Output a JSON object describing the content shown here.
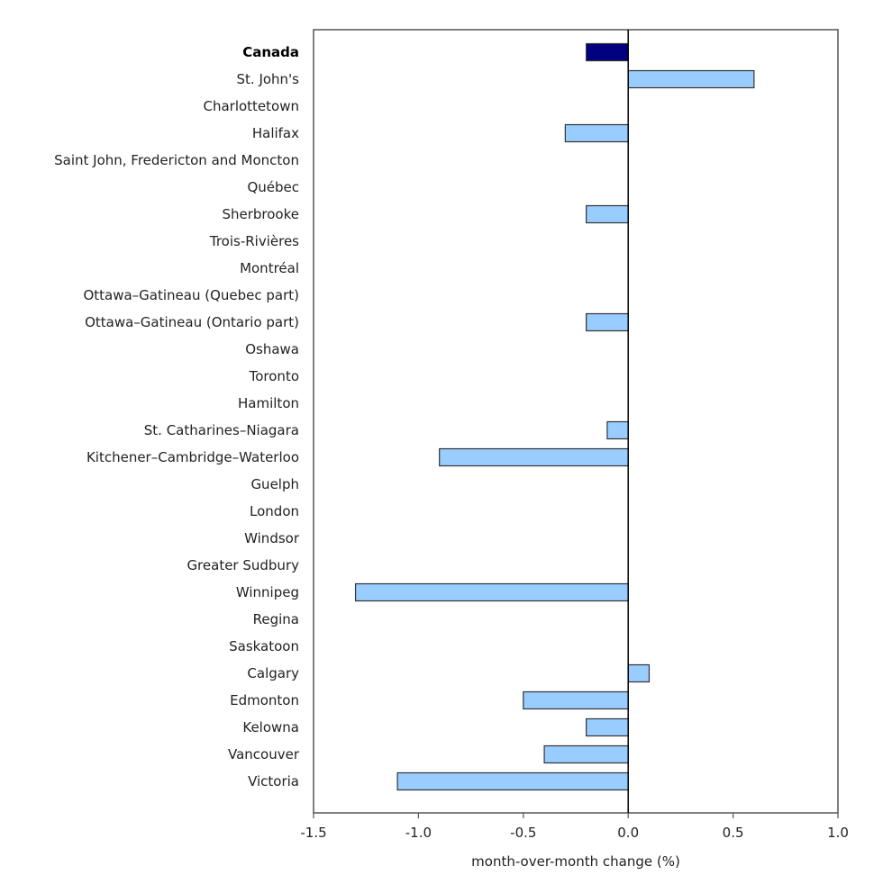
{
  "chart_data": {
    "type": "bar",
    "orientation": "horizontal",
    "title": "",
    "xlabel": "month-over-month change (%)",
    "ylabel": "",
    "xlim": [
      -1.5,
      1.0
    ],
    "xticks": [
      -1.5,
      -1.0,
      -0.5,
      0.0,
      0.5,
      1.0
    ],
    "xtick_labels": [
      "-1.5",
      "-1.0",
      "-0.5",
      "0.0",
      "0.5",
      "1.0"
    ],
    "grid": false,
    "legend": "none",
    "colors": {
      "highlight": "#000080",
      "bar": "#99ccff",
      "outline": "#333333",
      "frame": "#555555",
      "zero_line": "#000000"
    },
    "categories": [
      "Canada",
      "St. John's",
      "Charlottetown",
      "Halifax",
      "Saint John, Fredericton and Moncton",
      "Québec",
      "Sherbrooke",
      "Trois-Rivières",
      "Montréal",
      "Ottawa–Gatineau (Quebec part)",
      "Ottawa–Gatineau (Ontario part)",
      "Oshawa",
      "Toronto",
      "Hamilton",
      "St. Catharines–Niagara",
      "Kitchener–Cambridge–Waterloo",
      "Guelph",
      "London",
      "Windsor",
      "Greater Sudbury",
      "Winnipeg",
      "Regina",
      "Saskatoon",
      "Calgary",
      "Edmonton",
      "Kelowna",
      "Vancouver",
      "Victoria"
    ],
    "values": [
      -0.2,
      0.6,
      0.0,
      -0.3,
      0.0,
      0.0,
      -0.2,
      0.0,
      0.0,
      0.0,
      -0.2,
      0.0,
      0.0,
      0.0,
      -0.1,
      -0.9,
      0.0,
      0.0,
      0.0,
      0.0,
      -1.3,
      0.0,
      0.0,
      0.1,
      -0.5,
      -0.2,
      -0.4,
      -1.1
    ],
    "highlight_category": "Canada"
  }
}
